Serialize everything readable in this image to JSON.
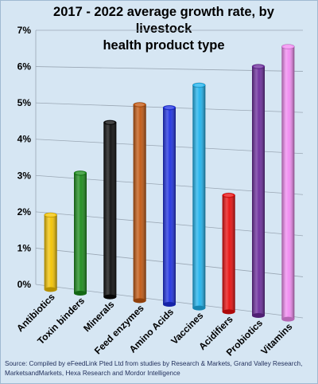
{
  "chart_data": {
    "type": "bar",
    "title_lines": [
      "2017 - 2022 average growth rate, by livestock",
      "health product type"
    ],
    "xlabel": "",
    "ylabel": "",
    "ylim": [
      0,
      0.07
    ],
    "y_ticks": [
      "0%",
      "1%",
      "2%",
      "3%",
      "4%",
      "5%",
      "6%",
      "7%"
    ],
    "grid": true,
    "categories": [
      "Antibiotics",
      "Toxin binders",
      "Minerals",
      "Feed enzymes",
      "Amino Acids",
      "Vaccines",
      "Acidifiers",
      "Probiotics",
      "Vitamins"
    ],
    "values": [
      0.0195,
      0.0315,
      0.0455,
      0.0505,
      0.05,
      0.056,
      0.0285,
      0.061,
      0.066
    ],
    "colors": [
      "#f2c200",
      "#1a8a1a",
      "#0a0a0a",
      "#c0560f",
      "#1c2fe0",
      "#1eb2ec",
      "#e80c0c",
      "#6a2a9a",
      "#f08af0"
    ],
    "source": "Source: Compiled by eFeedLink Pted Ltd from studies by Research & Markets, Grand Valley Research, MarketsandMarkets, Hexa Research and Mordor Intelligence"
  }
}
